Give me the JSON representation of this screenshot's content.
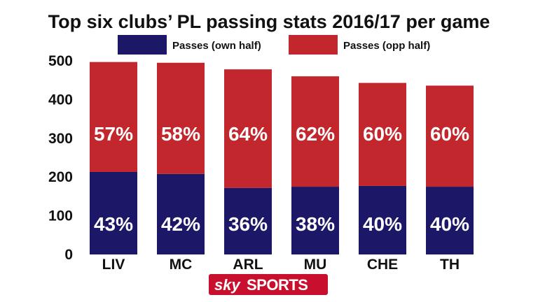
{
  "chart_data": {
    "type": "bar",
    "stacked": true,
    "title": "Top six clubs’ PL passing stats 2016/17 per game",
    "categories": [
      "LIV",
      "MC",
      "ARL",
      "MU",
      "CHE",
      "TH"
    ],
    "series": [
      {
        "name": "Passes (own half)",
        "color": "#1c1766",
        "values": [
          213,
          208,
          172,
          175,
          177,
          175
        ],
        "labels": [
          "43%",
          "42%",
          "36%",
          "38%",
          "40%",
          "40%"
        ]
      },
      {
        "name": "Passes (opp half)",
        "color": "#c1272d",
        "values": [
          284,
          287,
          306,
          285,
          266,
          261
        ],
        "labels": [
          "57%",
          "58%",
          "64%",
          "62%",
          "60%",
          "60%"
        ]
      }
    ],
    "ylim": [
      0,
      500
    ],
    "yticks": [
      "0",
      "100",
      "200",
      "300",
      "400",
      "500"
    ],
    "legend_position": "top",
    "grid": false
  },
  "branding": {
    "logo_text_1": "sky",
    "logo_text_2": "SPORTS",
    "logo_color": "#c8102e"
  }
}
